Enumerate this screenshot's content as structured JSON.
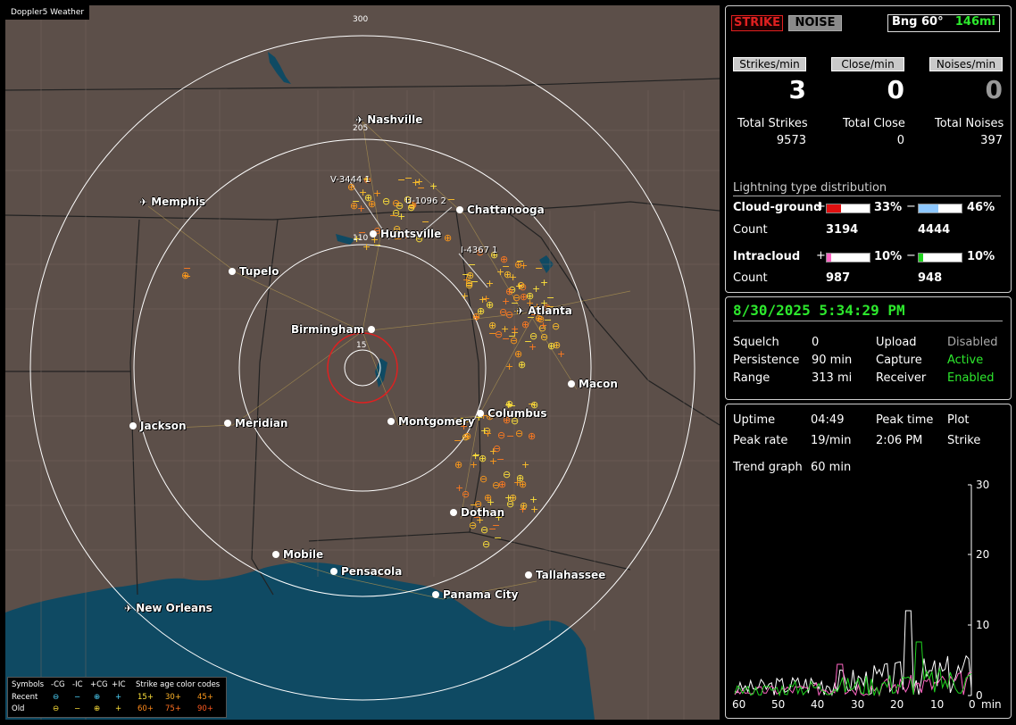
{
  "map": {
    "title": "Doppler5 Weather",
    "range_labels": [
      "300",
      "205",
      "110",
      "15"
    ],
    "cities": [
      {
        "name": "Nashville",
        "icon": "airport"
      },
      {
        "name": "Memphis",
        "icon": "airport"
      },
      {
        "name": "Chattanooga",
        "icon": "dot"
      },
      {
        "name": "Huntsville",
        "icon": "dot"
      },
      {
        "name": "Tupelo",
        "icon": "dot"
      },
      {
        "name": "Atlanta",
        "icon": "airport"
      },
      {
        "name": "Birmingham",
        "icon": "dot"
      },
      {
        "name": "Macon",
        "icon": "dot"
      },
      {
        "name": "Columbus",
        "icon": "dot"
      },
      {
        "name": "Montgomery",
        "icon": "dot"
      },
      {
        "name": "Jackson",
        "icon": "dot"
      },
      {
        "name": "Meridian",
        "icon": "dot"
      },
      {
        "name": "Dothan",
        "icon": "dot"
      },
      {
        "name": "Mobile",
        "icon": "dot"
      },
      {
        "name": "Pensacola",
        "icon": "dot"
      },
      {
        "name": "Tallahassee",
        "icon": "dot"
      },
      {
        "name": "Panama City",
        "icon": "dot"
      },
      {
        "name": "New Orleans",
        "icon": "airport"
      }
    ],
    "vectors": [
      "V-3444 1",
      "U-1096 2",
      "I-4367 1"
    ],
    "legend": {
      "symbols_label": "Symbols",
      "cg_neg": "-CG",
      "ic_neg": "-IC",
      "cg_pos": "+CG",
      "ic_pos": "+IC",
      "age_label": "Strike age color codes",
      "recent": "Recent",
      "old": "Old",
      "ages_recent": [
        "15+",
        "30+",
        "45+"
      ],
      "ages_old": [
        "60+",
        "75+",
        "90+"
      ]
    }
  },
  "header": {
    "strike_btn": "STRIKE",
    "noise_btn": "NOISE",
    "bearing": "Bng 60°",
    "distance": "146mi"
  },
  "rates": {
    "strikes_label": "Strikes/min",
    "close_label": "Close/min",
    "noises_label": "Noises/min",
    "strikes": "3",
    "close": "0",
    "noises": "0",
    "total_strikes_label": "Total Strikes",
    "total_close_label": "Total Close",
    "total_noises_label": "Total Noises",
    "total_strikes": "9573",
    "total_close": "0",
    "total_noises": "397"
  },
  "distribution": {
    "title": "Lightning type distribution",
    "cg_label": "Cloud-ground",
    "ic_label": "Intracloud",
    "count_label": "Count",
    "cg_pos_pct": "33%",
    "cg_neg_pct": "46%",
    "ic_pos_pct": "10%",
    "ic_neg_pct": "10%",
    "cg_pos_fraction": 0.33,
    "cg_neg_fraction": 0.46,
    "ic_pos_fraction": 0.1,
    "ic_neg_fraction": 0.1,
    "cg_pos_count": "3194",
    "cg_neg_count": "4444",
    "ic_pos_count": "987",
    "ic_neg_count": "948",
    "colors": {
      "cg_pos": "#e01010",
      "cg_neg": "#8ec8ff",
      "ic_pos": "#ff66c4",
      "ic_neg": "#1fd41f"
    }
  },
  "status": {
    "datetime": "8/30/2025 5:34:29 PM",
    "squelch_label": "Squelch",
    "squelch": "0",
    "persistence_label": "Persistence",
    "persistence": "90 min",
    "range_label": "Range",
    "range": "313 mi",
    "upload_label": "Upload",
    "upload": "Disabled",
    "capture_label": "Capture",
    "capture": "Active",
    "receiver_label": "Receiver",
    "receiver": "Enabled"
  },
  "trend": {
    "uptime_label": "Uptime",
    "uptime": "04:49",
    "peak_time_label": "Peak time",
    "peak_time": "2:06 PM",
    "plot_label": "Plot",
    "plot": "Strike",
    "peak_rate_label": "Peak rate",
    "peak_rate": "19/min",
    "trend_label": "Trend graph",
    "trend_window": "60 min",
    "y_ticks": [
      "30",
      "20",
      "10",
      "0"
    ],
    "x_ticks": [
      "60",
      "50",
      "40",
      "30",
      "20",
      "10",
      "0"
    ],
    "x_unit": "min"
  }
}
